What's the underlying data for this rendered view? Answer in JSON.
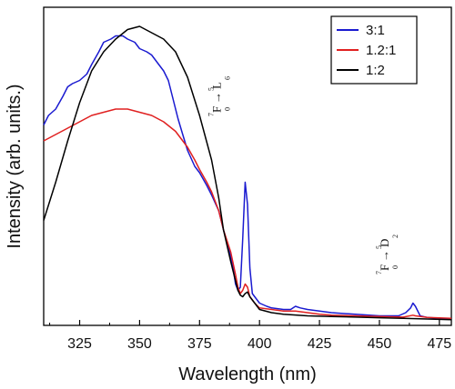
{
  "chart_data": {
    "type": "line",
    "title": "",
    "xlabel": "Wavelength (nm)",
    "ylabel": "Intensity (arb. units.)",
    "xlim": [
      310,
      480
    ],
    "ylim": [
      0,
      100
    ],
    "x_ticks": [
      325,
      350,
      375,
      400,
      425,
      450,
      475
    ],
    "y_ticks_shown": false,
    "grid": false,
    "legend_position": "top-right",
    "series": [
      {
        "name": "3:1",
        "color": "#1a1ad0",
        "points": [
          [
            310,
            63
          ],
          [
            312,
            66
          ],
          [
            315,
            68
          ],
          [
            318,
            72
          ],
          [
            320,
            75
          ],
          [
            322,
            76
          ],
          [
            325,
            77
          ],
          [
            328,
            79
          ],
          [
            330,
            82
          ],
          [
            333,
            86
          ],
          [
            335,
            89
          ],
          [
            338,
            90
          ],
          [
            340,
            91
          ],
          [
            343,
            91
          ],
          [
            345,
            90
          ],
          [
            348,
            89
          ],
          [
            350,
            87
          ],
          [
            353,
            86
          ],
          [
            355,
            85
          ],
          [
            358,
            82
          ],
          [
            360,
            80
          ],
          [
            362,
            77
          ],
          [
            364,
            71
          ],
          [
            366,
            65
          ],
          [
            368,
            60
          ],
          [
            370,
            55
          ],
          [
            373,
            50
          ],
          [
            375,
            48
          ],
          [
            378,
            44
          ],
          [
            380,
            41
          ],
          [
            383,
            36
          ],
          [
            385,
            30
          ],
          [
            387,
            25
          ],
          [
            389,
            18
          ],
          [
            390,
            13
          ],
          [
            391,
            11
          ],
          [
            392,
            12
          ],
          [
            393,
            27
          ],
          [
            394,
            45
          ],
          [
            395,
            38
          ],
          [
            396,
            18
          ],
          [
            397,
            10
          ],
          [
            398,
            9
          ],
          [
            400,
            7
          ],
          [
            403,
            6
          ],
          [
            405,
            5.5
          ],
          [
            410,
            5
          ],
          [
            413,
            5
          ],
          [
            415,
            6
          ],
          [
            417,
            5.5
          ],
          [
            420,
            5
          ],
          [
            425,
            4.5
          ],
          [
            430,
            4
          ],
          [
            440,
            3.5
          ],
          [
            450,
            3
          ],
          [
            458,
            3
          ],
          [
            461,
            4
          ],
          [
            463,
            5.5
          ],
          [
            464,
            7
          ],
          [
            465,
            6
          ],
          [
            467,
            3
          ],
          [
            470,
            2.5
          ],
          [
            475,
            2.2
          ],
          [
            480,
            2
          ]
        ]
      },
      {
        "name": "1.2:1",
        "color": "#e02020",
        "points": [
          [
            310,
            58
          ],
          [
            315,
            60
          ],
          [
            320,
            62
          ],
          [
            325,
            64
          ],
          [
            330,
            66
          ],
          [
            335,
            67
          ],
          [
            340,
            68
          ],
          [
            345,
            68
          ],
          [
            350,
            67
          ],
          [
            355,
            66
          ],
          [
            360,
            64
          ],
          [
            365,
            61
          ],
          [
            370,
            56
          ],
          [
            373,
            52
          ],
          [
            375,
            49
          ],
          [
            378,
            45
          ],
          [
            380,
            42
          ],
          [
            383,
            36
          ],
          [
            385,
            30
          ],
          [
            388,
            23
          ],
          [
            390,
            16
          ],
          [
            391,
            12
          ],
          [
            392,
            10
          ],
          [
            393,
            11
          ],
          [
            394,
            13
          ],
          [
            395,
            12
          ],
          [
            396,
            9
          ],
          [
            398,
            7
          ],
          [
            400,
            5.5
          ],
          [
            405,
            5
          ],
          [
            410,
            4.5
          ],
          [
            415,
            4.5
          ],
          [
            420,
            4
          ],
          [
            425,
            3.5
          ],
          [
            430,
            3.2
          ],
          [
            440,
            3
          ],
          [
            450,
            2.8
          ],
          [
            460,
            2.6
          ],
          [
            464,
            3.2
          ],
          [
            465,
            3
          ],
          [
            470,
            2.5
          ],
          [
            480,
            2.2
          ]
        ]
      },
      {
        "name": "1:2",
        "color": "#000000",
        "points": [
          [
            310,
            33
          ],
          [
            315,
            45
          ],
          [
            320,
            58
          ],
          [
            325,
            70
          ],
          [
            330,
            80
          ],
          [
            335,
            86
          ],
          [
            340,
            90
          ],
          [
            345,
            93
          ],
          [
            350,
            94
          ],
          [
            355,
            92
          ],
          [
            360,
            90
          ],
          [
            365,
            86
          ],
          [
            370,
            78
          ],
          [
            375,
            66
          ],
          [
            380,
            52
          ],
          [
            383,
            40
          ],
          [
            385,
            30
          ],
          [
            388,
            20
          ],
          [
            390,
            14
          ],
          [
            391,
            11
          ],
          [
            392,
            9.5
          ],
          [
            393,
            9
          ],
          [
            394,
            10
          ],
          [
            395,
            10.5
          ],
          [
            396,
            9
          ],
          [
            398,
            7
          ],
          [
            400,
            5
          ],
          [
            405,
            4
          ],
          [
            410,
            3.5
          ],
          [
            420,
            3
          ],
          [
            430,
            2.8
          ],
          [
            440,
            2.6
          ],
          [
            450,
            2.4
          ],
          [
            460,
            2.2
          ],
          [
            470,
            2
          ],
          [
            480,
            1.8
          ]
        ]
      }
    ],
    "annotations": [
      {
        "x": 394,
        "main": "F",
        "arrow": "→",
        "main2": "L",
        "pre_sup": "7",
        "pre_sub": "0",
        "post_sup": "5",
        "post_sub": "6"
      },
      {
        "x": 464,
        "main": "F",
        "arrow": "→",
        "main2": "D",
        "pre_sup": "7",
        "pre_sub": "0",
        "post_sup": "5",
        "post_sub": "2"
      }
    ]
  }
}
